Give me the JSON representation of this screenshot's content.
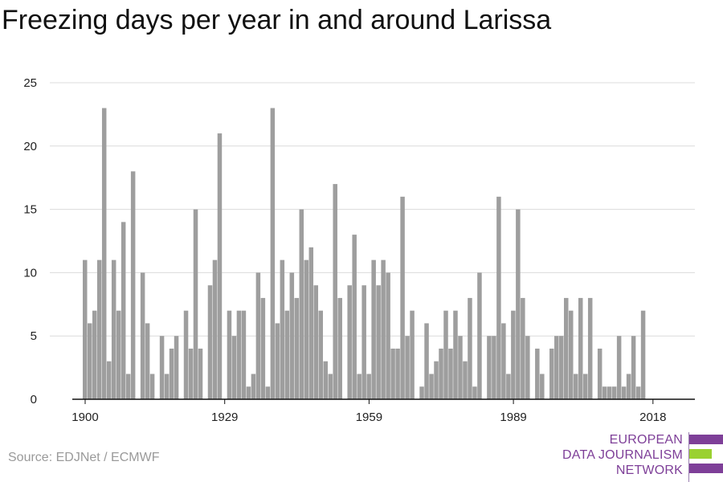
{
  "title": "Freezing days per year in and around Larissa",
  "source": "Source: EDJNet / ECMWF",
  "logo": {
    "line1": "EUROPEAN",
    "line2": "DATA JOURNALISM",
    "line3": "NETWORK",
    "colors": {
      "text": "#7e3f98",
      "bar_top": "#7e3f98",
      "bar_mid": "#9ad131",
      "bar_bottom": "#7e3f98"
    }
  },
  "chart_data": {
    "type": "bar",
    "title": "Freezing days per year in and around Larissa",
    "xlabel": "",
    "ylabel": "",
    "ylim": [
      0,
      25
    ],
    "yticks": [
      0,
      5,
      10,
      15,
      20,
      25
    ],
    "xticks": [
      1900,
      1929,
      1959,
      1989,
      2018
    ],
    "grid": true,
    "bar_color": "#9e9e9e",
    "x": [
      1900,
      1901,
      1902,
      1903,
      1904,
      1905,
      1906,
      1907,
      1908,
      1909,
      1910,
      1911,
      1912,
      1913,
      1914,
      1915,
      1916,
      1917,
      1918,
      1919,
      1920,
      1921,
      1922,
      1923,
      1924,
      1925,
      1926,
      1927,
      1928,
      1929,
      1930,
      1931,
      1932,
      1933,
      1934,
      1935,
      1936,
      1937,
      1938,
      1939,
      1940,
      1941,
      1942,
      1943,
      1944,
      1945,
      1946,
      1947,
      1948,
      1949,
      1950,
      1951,
      1952,
      1953,
      1954,
      1955,
      1956,
      1957,
      1958,
      1959,
      1960,
      1961,
      1962,
      1963,
      1964,
      1965,
      1966,
      1967,
      1968,
      1969,
      1970,
      1971,
      1972,
      1973,
      1974,
      1975,
      1976,
      1977,
      1978,
      1979,
      1980,
      1981,
      1982,
      1983,
      1984,
      1985,
      1986,
      1987,
      1988,
      1989,
      1990,
      1991,
      1992,
      1993,
      1994,
      1995,
      1996,
      1997,
      1998,
      1999,
      2000,
      2001,
      2002,
      2003,
      2004,
      2005,
      2006,
      2007,
      2008,
      2009,
      2010,
      2011,
      2012,
      2013,
      2014,
      2015,
      2016,
      2017,
      2018
    ],
    "values": [
      11,
      6,
      7,
      11,
      23,
      3,
      11,
      7,
      14,
      2,
      18,
      0,
      10,
      6,
      2,
      0,
      5,
      2,
      4,
      5,
      0,
      7,
      4,
      15,
      4,
      0,
      9,
      11,
      21,
      0,
      7,
      5,
      7,
      7,
      1,
      2,
      10,
      8,
      1,
      23,
      6,
      11,
      7,
      10,
      8,
      15,
      11,
      12,
      9,
      7,
      3,
      2,
      17,
      8,
      0,
      9,
      13,
      2,
      9,
      2,
      11,
      9,
      11,
      10,
      4,
      4,
      16,
      5,
      7,
      0,
      1,
      6,
      2,
      3,
      4,
      7,
      4,
      7,
      5,
      3,
      8,
      1,
      10,
      0,
      5,
      5,
      16,
      6,
      2,
      7,
      15,
      8,
      5,
      0,
      4,
      2,
      0,
      4,
      5,
      5,
      8,
      7,
      2,
      8,
      2,
      8,
      0,
      4,
      1,
      1,
      1,
      5,
      1,
      2,
      5,
      1,
      7,
      0,
      0
    ]
  }
}
